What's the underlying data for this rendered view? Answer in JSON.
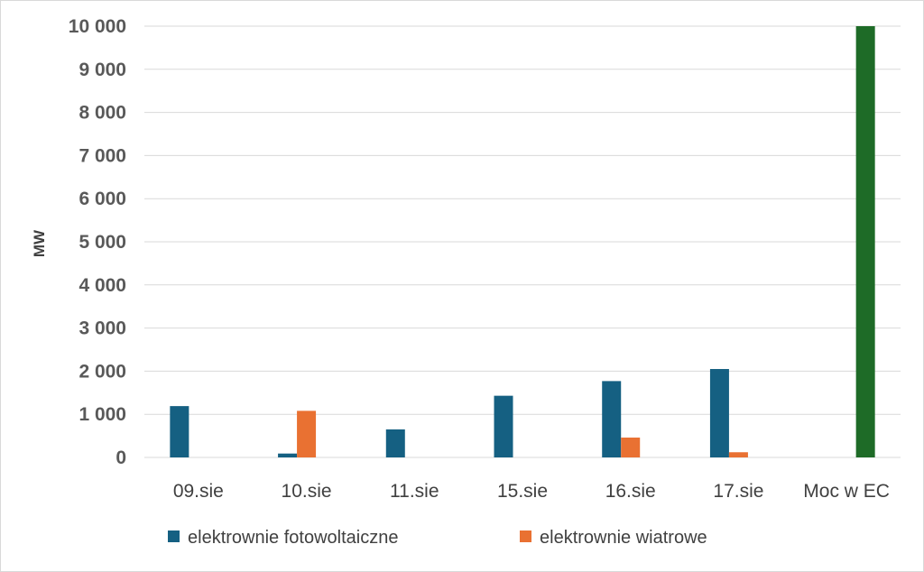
{
  "chart_data": {
    "type": "bar",
    "ylabel": "MW",
    "ylim": [
      0,
      10000
    ],
    "yticks": [
      0,
      1000,
      2000,
      3000,
      4000,
      5000,
      6000,
      7000,
      8000,
      9000,
      10000
    ],
    "ytick_labels": [
      "0",
      "1 000",
      "2 000",
      "3 000",
      "4 000",
      "5 000",
      "6 000",
      "7 000",
      "8 000",
      "9 000",
      "10 000"
    ],
    "categories": [
      "09.sie",
      "10.sie",
      "11.sie",
      "15.sie",
      "16.sie",
      "17.sie",
      "Moc w EC"
    ],
    "series": [
      {
        "name": "elektrownie fotowoltaiczne",
        "color": "#156082",
        "values": [
          1190,
          90,
          650,
          1430,
          1770,
          2050,
          null
        ]
      },
      {
        "name": "elektrownie wiatrowe",
        "color": "#e97132",
        "values": [
          null,
          1080,
          null,
          null,
          460,
          120,
          null
        ]
      },
      {
        "name": "",
        "color": "#1e6b27",
        "values": [
          null,
          null,
          null,
          null,
          null,
          null,
          10000
        ]
      }
    ],
    "legend_position": "bottom",
    "grid": true
  }
}
